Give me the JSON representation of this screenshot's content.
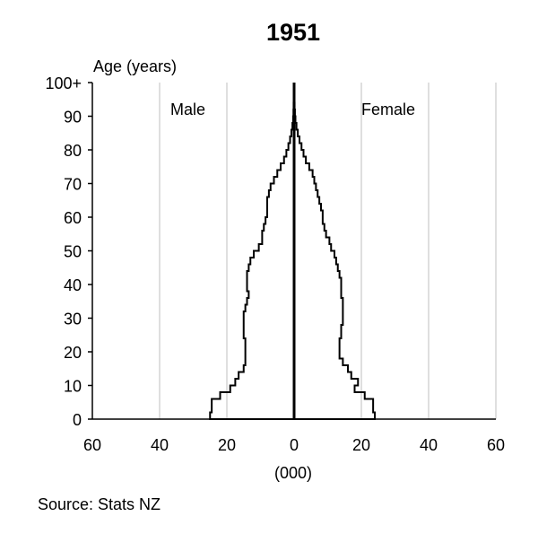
{
  "chart_data": {
    "type": "population-pyramid",
    "title": "1951",
    "ylabel": "Age (years)",
    "xlabel": "(000)",
    "xlim": [
      -60,
      60
    ],
    "ylim": [
      0,
      100
    ],
    "x_ticks": [
      -60,
      -40,
      -20,
      0,
      20,
      40,
      60
    ],
    "x_tick_labels": [
      "60",
      "40",
      "20",
      "0",
      "20",
      "40",
      "60"
    ],
    "y_ticks": [
      0,
      10,
      20,
      30,
      40,
      50,
      60,
      70,
      80,
      90,
      100
    ],
    "y_tick_labels": [
      "0",
      "10",
      "20",
      "30",
      "40",
      "50",
      "60",
      "70",
      "80",
      "90",
      "100+"
    ],
    "grid": "vertical",
    "series": [
      {
        "name": "Male",
        "ages": [
          0,
          2,
          4,
          6,
          8,
          10,
          12,
          14,
          16,
          18,
          20,
          22,
          24,
          26,
          28,
          30,
          32,
          34,
          36,
          38,
          40,
          42,
          44,
          46,
          48,
          50,
          52,
          54,
          56,
          58,
          60,
          62,
          64,
          66,
          68,
          70,
          72,
          74,
          76,
          78,
          80,
          82,
          84,
          86,
          88,
          90,
          92,
          94,
          96,
          98,
          100
        ],
        "values": [
          25,
          24.5,
          24.5,
          22,
          19,
          17.5,
          16.5,
          15,
          14.5,
          14.5,
          14.5,
          14.5,
          15,
          15,
          15,
          15,
          14.5,
          14,
          13.5,
          14,
          14,
          14,
          13.5,
          13,
          12,
          10.5,
          9.5,
          9.5,
          9,
          8.5,
          8,
          8,
          8,
          7.5,
          7,
          6,
          5,
          4,
          3,
          2.3,
          1.7,
          1.2,
          0.8,
          0.5,
          0.3,
          0.2,
          0.15,
          0.1,
          0.1,
          0.1,
          0.1
        ]
      },
      {
        "name": "Female",
        "ages": [
          0,
          2,
          4,
          6,
          8,
          10,
          12,
          14,
          16,
          18,
          20,
          22,
          24,
          26,
          28,
          30,
          32,
          34,
          36,
          38,
          40,
          42,
          44,
          46,
          48,
          50,
          52,
          54,
          56,
          58,
          60,
          62,
          64,
          66,
          68,
          70,
          72,
          74,
          76,
          78,
          80,
          82,
          84,
          86,
          88,
          90,
          92,
          94,
          96,
          98,
          100
        ],
        "values": [
          24,
          23.5,
          23.5,
          21,
          18,
          19,
          17,
          16,
          14.5,
          13.5,
          13.5,
          13.5,
          14,
          14,
          14.5,
          14.5,
          14.5,
          14.5,
          14,
          14,
          14,
          13.5,
          13,
          12.5,
          12,
          11,
          10.5,
          9.5,
          9,
          8.5,
          8.5,
          8,
          7.5,
          7,
          6.5,
          6,
          5.5,
          4.5,
          3.5,
          2.8,
          2.2,
          1.6,
          1.1,
          0.7,
          0.4,
          0.25,
          0.15,
          0.1,
          0.1,
          0.1,
          0.1
        ]
      }
    ],
    "annotations": [
      "Male",
      "Female"
    ],
    "colors": {
      "line": "#000000",
      "grid": "#bfbfbf"
    }
  },
  "source": "Source: Stats NZ"
}
